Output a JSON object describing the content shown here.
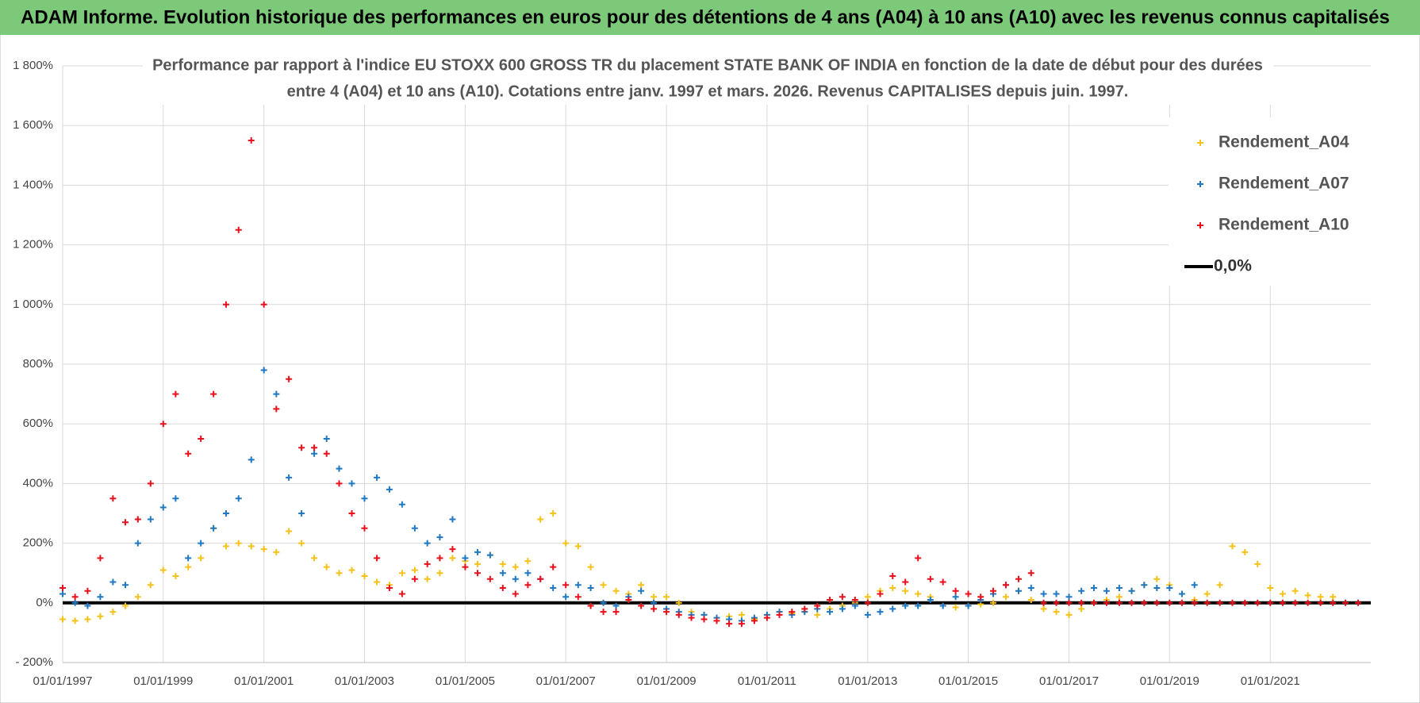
{
  "header": {
    "title": "ADAM Informe. Evolution historique des performances en euros pour des détentions de 4 ans (A04) à 10 ans (A10) avec les revenus connus capitalisés"
  },
  "chart_data": {
    "type": "scatter",
    "title": "Performance par rapport à l'indice EU STOXX 600 GROSS TR  du placement STATE BANK OF INDIA en fonction de la date de début pour des durées",
    "subtitle": "entre 4 (A04) et 10 ans (A10). Cotations entre janv. 1997 et mars. 2026. Revenus CAPITALISES depuis juin. 1997.",
    "x": [
      "1997-01-01",
      "1997-04-01",
      "1997-07-01",
      "1997-10-01",
      "1998-01-01",
      "1998-04-01",
      "1998-07-01",
      "1998-10-01",
      "1999-01-01",
      "1999-04-01",
      "1999-07-01",
      "1999-10-01",
      "2000-01-01",
      "2000-04-01",
      "2000-07-01",
      "2000-10-01",
      "2001-01-01",
      "2001-04-01",
      "2001-07-01",
      "2001-10-01",
      "2002-01-01",
      "2002-04-01",
      "2002-07-01",
      "2002-10-01",
      "2003-01-01",
      "2003-04-01",
      "2003-07-01",
      "2003-10-01",
      "2004-01-01",
      "2004-04-01",
      "2004-07-01",
      "2004-10-01",
      "2005-01-01",
      "2005-04-01",
      "2005-07-01",
      "2005-10-01",
      "2006-01-01",
      "2006-04-01",
      "2006-07-01",
      "2006-10-01",
      "2007-01-01",
      "2007-04-01",
      "2007-07-01",
      "2007-10-01",
      "2008-01-01",
      "2008-04-01",
      "2008-07-01",
      "2008-10-01",
      "2009-01-01",
      "2009-04-01",
      "2009-07-01",
      "2009-10-01",
      "2010-01-01",
      "2010-04-01",
      "2010-07-01",
      "2010-10-01",
      "2011-01-01",
      "2011-04-01",
      "2011-07-01",
      "2011-10-01",
      "2012-01-01",
      "2012-04-01",
      "2012-07-01",
      "2012-10-01",
      "2013-01-01",
      "2013-04-01",
      "2013-07-01",
      "2013-10-01",
      "2014-01-01",
      "2014-04-01",
      "2014-07-01",
      "2014-10-01",
      "2015-01-01",
      "2015-04-01",
      "2015-07-01",
      "2015-10-01",
      "2016-01-01",
      "2016-04-01",
      "2016-07-01",
      "2016-10-01",
      "2017-01-01",
      "2017-04-01",
      "2017-07-01",
      "2017-10-01",
      "2018-01-01",
      "2018-04-01",
      "2018-07-01",
      "2018-10-01",
      "2019-01-01",
      "2019-04-01",
      "2019-07-01",
      "2019-10-01",
      "2020-01-01",
      "2020-04-01",
      "2020-07-01",
      "2020-10-01",
      "2021-01-01",
      "2021-04-01",
      "2021-07-01",
      "2021-10-01",
      "2022-01-01",
      "2022-04-01",
      "2022-07-01",
      "2022-10-01"
    ],
    "series": [
      {
        "name": "Rendement_A04",
        "color": "#f5c21b",
        "values": [
          -55,
          -60,
          -55,
          -45,
          -30,
          -10,
          20,
          60,
          110,
          90,
          120,
          150,
          250,
          190,
          200,
          190,
          180,
          170,
          240,
          200,
          150,
          120,
          100,
          110,
          90,
          70,
          60,
          100,
          110,
          80,
          100,
          150,
          140,
          130,
          160,
          130,
          120,
          140,
          280,
          300,
          200,
          190,
          120,
          60,
          40,
          30,
          60,
          20,
          20,
          0,
          -30,
          -40,
          -50,
          -45,
          -40,
          -55,
          -40,
          -30,
          -35,
          -30,
          -40,
          -20,
          -10,
          0,
          20,
          40,
          50,
          40,
          30,
          20,
          -10,
          -15,
          -10,
          -5,
          0,
          20,
          40,
          10,
          -20,
          -30,
          -40,
          -20,
          0,
          10,
          20,
          40,
          60,
          80,
          60,
          30,
          10,
          30,
          60,
          190,
          170,
          130,
          50,
          30,
          40,
          25,
          20,
          20,
          null,
          null
        ]
      },
      {
        "name": "Rendement_A07",
        "color": "#1f78c1",
        "values": [
          30,
          0,
          -10,
          20,
          70,
          60,
          200,
          280,
          320,
          350,
          150,
          200,
          250,
          300,
          350,
          480,
          780,
          700,
          420,
          300,
          500,
          550,
          450,
          400,
          350,
          420,
          380,
          330,
          250,
          200,
          220,
          280,
          150,
          170,
          160,
          100,
          80,
          100,
          80,
          50,
          20,
          60,
          50,
          0,
          -10,
          20,
          40,
          0,
          -20,
          -30,
          -40,
          -40,
          -50,
          -55,
          -60,
          -50,
          -40,
          -30,
          -40,
          -30,
          -20,
          -30,
          -20,
          -10,
          -40,
          -30,
          -20,
          -10,
          -10,
          10,
          -10,
          20,
          -10,
          10,
          30,
          60,
          40,
          50,
          30,
          30,
          20,
          40,
          50,
          40,
          50,
          40,
          60,
          50,
          50,
          30,
          60,
          null,
          null,
          null,
          null,
          null,
          null,
          null,
          null,
          null,
          null,
          null,
          null,
          null
        ]
      },
      {
        "name": "Rendement_A10",
        "color": "#e8101a",
        "values": [
          50,
          20,
          40,
          150,
          350,
          270,
          280,
          400,
          600,
          700,
          500,
          550,
          700,
          1000,
          1250,
          1550,
          1000,
          650,
          750,
          520,
          520,
          500,
          400,
          300,
          250,
          150,
          50,
          30,
          80,
          130,
          150,
          180,
          120,
          100,
          80,
          50,
          30,
          60,
          80,
          120,
          60,
          20,
          -10,
          -30,
          -30,
          10,
          -10,
          -20,
          -30,
          -40,
          -50,
          -55,
          -60,
          -70,
          -70,
          -60,
          -50,
          -40,
          -30,
          -20,
          -10,
          10,
          20,
          10,
          0,
          30,
          90,
          70,
          150,
          80,
          70,
          40,
          30,
          20,
          40,
          60,
          80,
          100,
          0,
          0,
          0,
          0,
          0,
          0,
          0,
          0,
          0,
          0,
          0,
          0,
          0,
          0,
          0,
          0,
          0,
          0,
          0,
          0,
          0,
          0,
          0,
          0,
          0,
          0
        ]
      }
    ],
    "zero_line": {
      "name": "0,0%",
      "color": "#000000",
      "value": 0
    },
    "xlim": [
      "1997-01-01",
      "2023-01-01"
    ],
    "xticks": [
      {
        "value": "1997-01-01",
        "label": "01/01/1997"
      },
      {
        "value": "1999-01-01",
        "label": "01/01/1999"
      },
      {
        "value": "2001-01-01",
        "label": "01/01/2001"
      },
      {
        "value": "2003-01-01",
        "label": "01/01/2003"
      },
      {
        "value": "2005-01-01",
        "label": "01/01/2005"
      },
      {
        "value": "2007-01-01",
        "label": "01/01/2007"
      },
      {
        "value": "2009-01-01",
        "label": "01/01/2009"
      },
      {
        "value": "2011-01-01",
        "label": "01/01/2011"
      },
      {
        "value": "2013-01-01",
        "label": "01/01/2013"
      },
      {
        "value": "2015-01-01",
        "label": "01/01/2015"
      },
      {
        "value": "2017-01-01",
        "label": "01/01/2017"
      },
      {
        "value": "2019-01-01",
        "label": "01/01/2019"
      },
      {
        "value": "2021-01-01",
        "label": "01/01/2021"
      }
    ],
    "ylim": [
      -200,
      1800
    ],
    "yticks": [
      {
        "value": -200,
        "label": "- 200%"
      },
      {
        "value": 0,
        "label": "0%"
      },
      {
        "value": 200,
        "label": "200%"
      },
      {
        "value": 400,
        "label": "400%"
      },
      {
        "value": 600,
        "label": "600%"
      },
      {
        "value": 800,
        "label": "800%"
      },
      {
        "value": 1000,
        "label": "1 000%"
      },
      {
        "value": 1200,
        "label": "1 200%"
      },
      {
        "value": 1400,
        "label": "1 400%"
      },
      {
        "value": 1600,
        "label": "1 600%"
      },
      {
        "value": 1800,
        "label": "1 800%"
      }
    ],
    "grid": true,
    "legend": "upper right"
  }
}
